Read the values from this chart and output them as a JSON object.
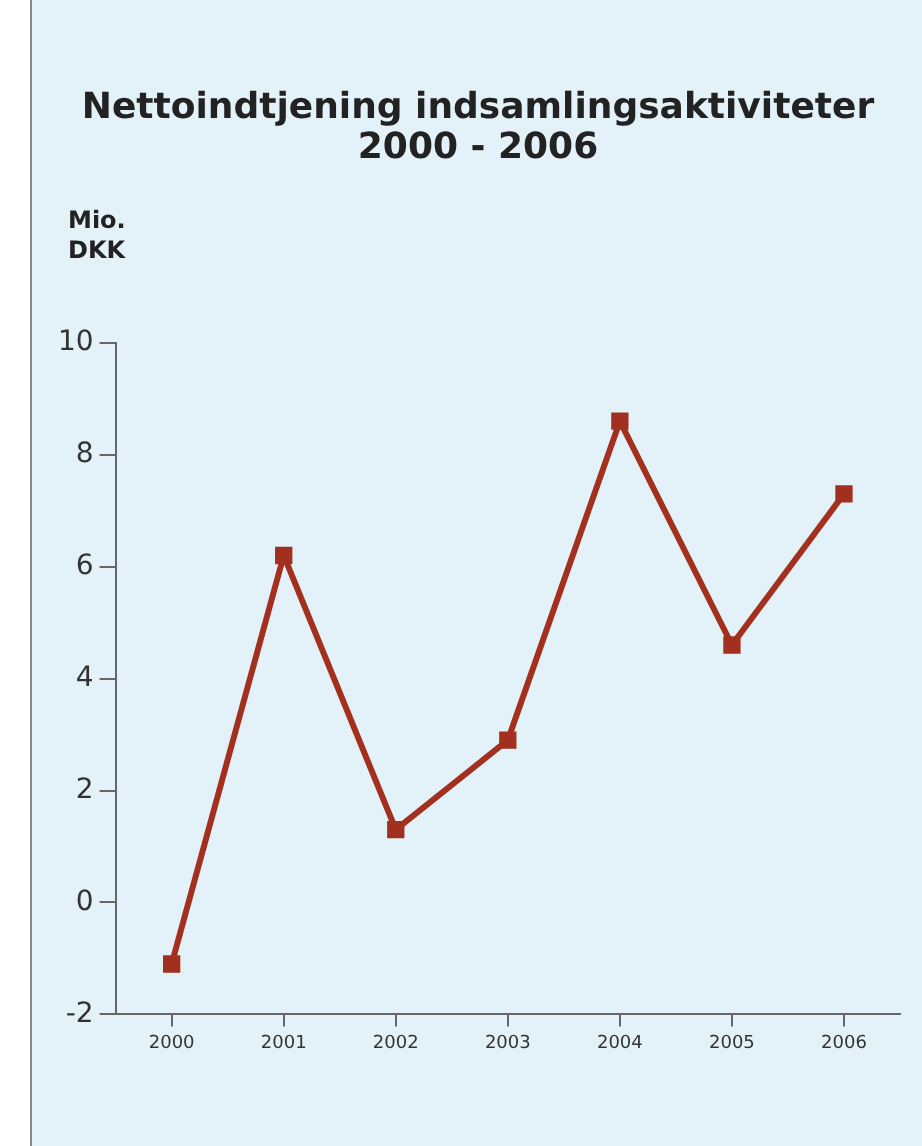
{
  "chart_data": {
    "type": "line",
    "title": "Nettoindtjening indsamlingsaktiviteter\n2000 - 2006",
    "ylabel": "Mio.\nDKK",
    "categories": [
      "2000",
      "2001",
      "2002",
      "2003",
      "2004",
      "2005",
      "2006"
    ],
    "series": [
      {
        "color": "#a3301f",
        "values": [
          -1.1,
          6.2,
          1.3,
          2.9,
          8.6,
          4.6,
          7.3
        ]
      }
    ],
    "ylim": [
      -2,
      10
    ],
    "yticks": [
      -2,
      0,
      2,
      4,
      6,
      8,
      10
    ],
    "grid": false,
    "legend": false,
    "marker": "square",
    "line_style": "solid"
  }
}
